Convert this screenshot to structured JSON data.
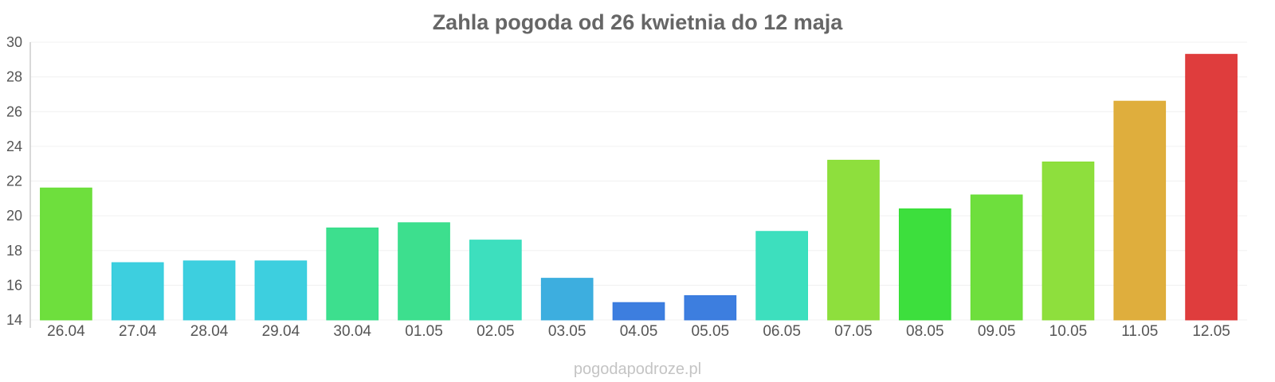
{
  "chart_data": {
    "type": "bar",
    "title": "Zahla pogoda od 26 kwietnia do 12 maja",
    "xlabel": "",
    "ylabel": "",
    "ylim": [
      14,
      30
    ],
    "yticks": [
      14,
      16,
      18,
      20,
      22,
      24,
      26,
      28,
      30
    ],
    "grid": true,
    "legend": "none",
    "categories": [
      "26.04",
      "27.04",
      "28.04",
      "29.04",
      "30.04",
      "01.05",
      "02.05",
      "03.05",
      "04.05",
      "05.05",
      "06.05",
      "07.05",
      "08.05",
      "09.05",
      "10.05",
      "11.05",
      "12.05"
    ],
    "values": [
      21.6,
      17.3,
      17.4,
      17.4,
      19.3,
      19.6,
      18.6,
      16.4,
      15.0,
      15.4,
      19.1,
      23.2,
      20.4,
      21.2,
      23.1,
      26.6,
      29.3
    ],
    "colors": [
      "#66dd33",
      "#33ccdd",
      "#33ccdd",
      "#33ccdd",
      "#33dd88",
      "#33dd88",
      "#33ddbb",
      "#33aadd",
      "#3377dd",
      "#3377dd",
      "#33ddbb",
      "#88dd33",
      "#33dd33",
      "#66dd33",
      "#88dd33",
      "#ddaa33",
      "#dd3333"
    ]
  },
  "watermark": "pogodapodroze.pl"
}
